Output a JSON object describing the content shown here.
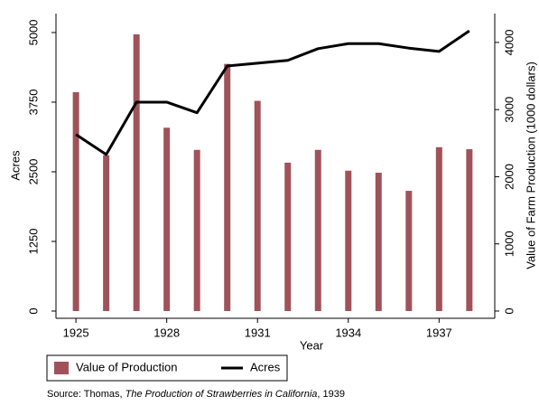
{
  "chart_data": {
    "type": "combo",
    "x": [
      1925,
      1926,
      1927,
      1928,
      1929,
      1930,
      1931,
      1932,
      1933,
      1934,
      1935,
      1936,
      1937,
      1938
    ],
    "series": [
      {
        "name": "Value of Production",
        "type": "bar",
        "axis": "y2",
        "color": "#a0525a",
        "values": [
          3260,
          2320,
          4120,
          2730,
          2400,
          3680,
          3130,
          2210,
          2400,
          2090,
          2060,
          1790,
          2440,
          2410
        ]
      },
      {
        "name": "Acres",
        "type": "line",
        "axis": "y",
        "color": "#000000",
        "values": [
          3170,
          2810,
          3750,
          3750,
          3560,
          4400,
          4450,
          4500,
          4710,
          4800,
          4800,
          4720,
          4660,
          5030
        ]
      }
    ],
    "xlabel": "Year",
    "ylabel": "Acres",
    "y2label": "Value of Farm Production (1000 dollars)",
    "xlim": [
      1924.34,
      1938.84
    ],
    "xticks": [
      1925,
      1928,
      1931,
      1934,
      1937
    ],
    "ylim": [
      -130,
      5340
    ],
    "yticks": [
      0,
      1250,
      2500,
      3750,
      5000
    ],
    "y2lim": [
      -108,
      4430
    ],
    "y2ticks": [
      0,
      1000,
      2000,
      3000,
      4000
    ],
    "legend": "bottom-left",
    "source": [
      "Source: Thomas, ",
      "The Production of Strawberries in California",
      ", 1939"
    ]
  }
}
